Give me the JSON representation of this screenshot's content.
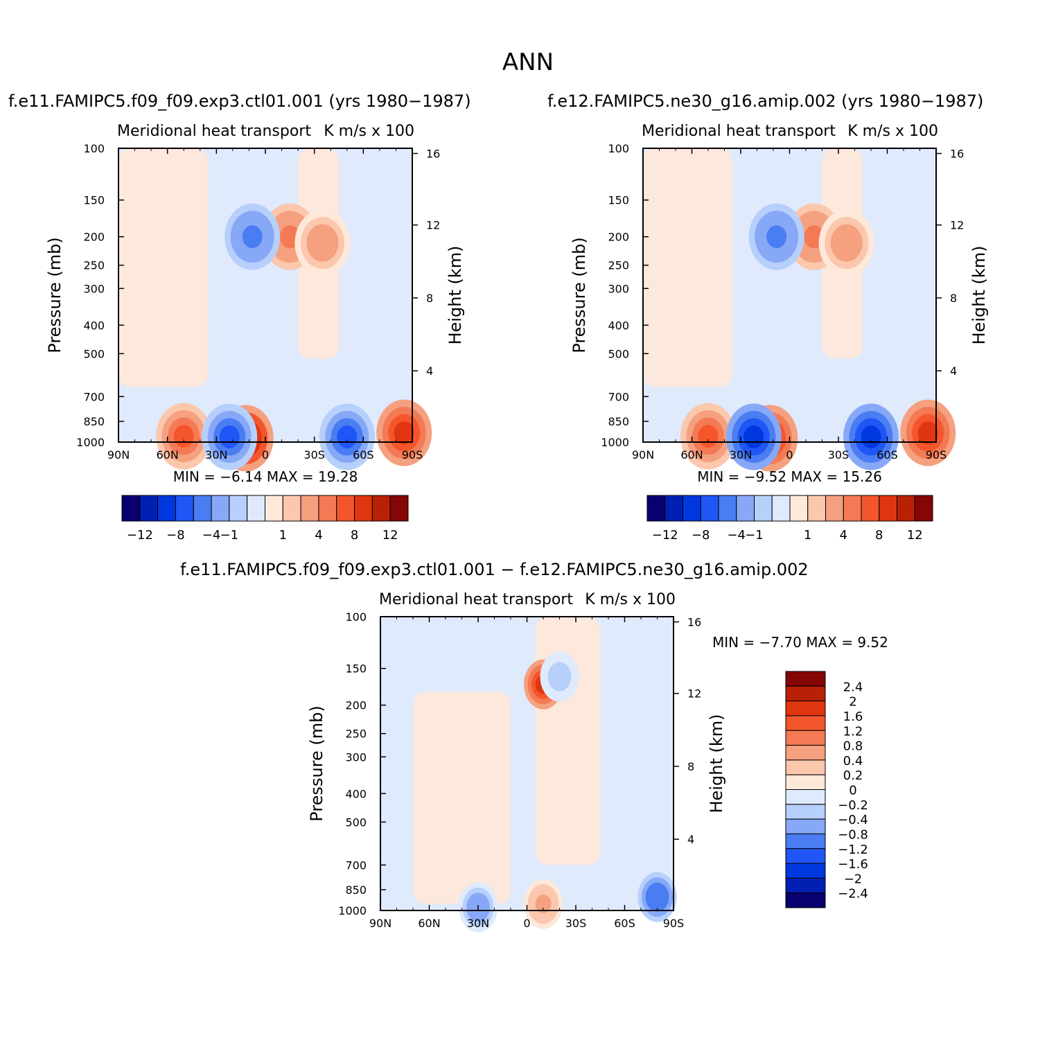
{
  "page_title": "ANN",
  "colors": {
    "cmap": [
      "#08006e",
      "#0020b4",
      "#0038e0",
      "#1f56f5",
      "#4a7df2",
      "#86a8f7",
      "#b7cffb",
      "#dfeafc",
      "#fde8da",
      "#fbc7ad",
      "#f5a07f",
      "#f37a55",
      "#f4562c",
      "#e0360f",
      "#b82106",
      "#860505"
    ]
  },
  "chart_data": [
    {
      "type": "heatmap",
      "panel_title": "f.e11.FAMIPC5.f09_f09.exp3.ctl01.001 (yrs 1980−1987)",
      "left_label": "Meridional heat transport",
      "right_label": "K m/s x 100",
      "ylabel": "Pressure (mb)",
      "ylabel_right": "Height (km)",
      "x_ticks": [
        "90N",
        "60N",
        "30N",
        "0",
        "30S",
        "60S",
        "90S"
      ],
      "y_ticks": [
        "100",
        "150",
        "200",
        "250",
        "300",
        "400",
        "500",
        "700",
        "850",
        "1000"
      ],
      "y_tick_values": [
        100,
        150,
        200,
        250,
        300,
        400,
        500,
        700,
        850,
        1000
      ],
      "y_right_ticks": [
        "16",
        "12",
        "8",
        "4"
      ],
      "xlim": [
        90,
        -90
      ],
      "ylim": [
        1000,
        100
      ],
      "min_max_text": "MIN =   −6.14   MAX =   19.28",
      "min": -6.14,
      "max": 19.28,
      "colorbar_levels": [
        "−12",
        "−8",
        "−4",
        "−1",
        "1",
        "4",
        "8",
        "12"
      ],
      "features": [
        {
          "lat": 12,
          "p": 970,
          "value": 12
        },
        {
          "lat": -50,
          "p": 960,
          "value": -7
        },
        {
          "lat": 50,
          "p": 955,
          "value": 6
        },
        {
          "lat": 22,
          "p": 960,
          "value": -8
        },
        {
          "lat": -15,
          "p": 200,
          "value": 5
        },
        {
          "lat": 8,
          "p": 200,
          "value": -5
        },
        {
          "lat": -35,
          "p": 210,
          "value": 3
        },
        {
          "lat": -85,
          "p": 930,
          "value": 9
        }
      ]
    },
    {
      "type": "heatmap",
      "panel_title": "f.e12.FAMIPC5.ne30_g16.amip.002 (yrs 1980−1987)",
      "left_label": "Meridional heat transport",
      "right_label": "K m/s x 100",
      "ylabel": "Pressure (mb)",
      "ylabel_right": "Height (km)",
      "x_ticks": [
        "90N",
        "60N",
        "30N",
        "0",
        "30S",
        "60S",
        "90S"
      ],
      "y_ticks": [
        "100",
        "150",
        "200",
        "250",
        "300",
        "400",
        "500",
        "700",
        "850",
        "1000"
      ],
      "y_tick_values": [
        100,
        150,
        200,
        250,
        300,
        400,
        500,
        700,
        850,
        1000
      ],
      "y_right_ticks": [
        "16",
        "12",
        "8",
        "4"
      ],
      "xlim": [
        90,
        -90
      ],
      "ylim": [
        1000,
        100
      ],
      "min_max_text": "MIN =   −9.52   MAX =   15.26",
      "min": -9.52,
      "max": 15.26,
      "colorbar_levels": [
        "−12",
        "−8",
        "−4",
        "−1",
        "1",
        "4",
        "8",
        "12"
      ],
      "features": [
        {
          "lat": 12,
          "p": 970,
          "value": 10
        },
        {
          "lat": -50,
          "p": 960,
          "value": -9
        },
        {
          "lat": 50,
          "p": 955,
          "value": 6
        },
        {
          "lat": 22,
          "p": 960,
          "value": -9
        },
        {
          "lat": -15,
          "p": 200,
          "value": 5
        },
        {
          "lat": 8,
          "p": 200,
          "value": -5
        },
        {
          "lat": -35,
          "p": 210,
          "value": 3
        },
        {
          "lat": -85,
          "p": 930,
          "value": 8
        }
      ]
    },
    {
      "type": "heatmap",
      "panel_title": "f.e11.FAMIPC5.f09_f09.exp3.ctl01.001 − f.e12.FAMIPC5.ne30_g16.amip.002",
      "left_label": "Meridional heat transport",
      "right_label": "K m/s x 100",
      "ylabel": "Pressure (mb)",
      "ylabel_right": "Height (km)",
      "x_ticks": [
        "90N",
        "60N",
        "30N",
        "0",
        "30S",
        "60S",
        "90S"
      ],
      "y_ticks": [
        "100",
        "150",
        "200",
        "250",
        "300",
        "400",
        "500",
        "700",
        "850",
        "1000"
      ],
      "y_tick_values": [
        100,
        150,
        200,
        250,
        300,
        400,
        500,
        700,
        850,
        1000
      ],
      "y_right_ticks": [
        "16",
        "12",
        "8",
        "4"
      ],
      "xlim": [
        90,
        -90
      ],
      "ylim": [
        1000,
        100
      ],
      "min_max_text": "MIN =   −7.70   MAX =     9.52",
      "min": -7.7,
      "max": 9.52,
      "colorbar_levels": [
        "2.4",
        "2",
        "1.6",
        "1.2",
        "0.8",
        "0.4",
        "0.2",
        "0",
        "−0.2",
        "−0.4",
        "−0.8",
        "−1.2",
        "−1.6",
        "−2",
        "−2.4"
      ],
      "features": [
        {
          "lat": -10,
          "p": 170,
          "value": 1.6
        },
        {
          "lat": -20,
          "p": 160,
          "value": -0.4
        },
        {
          "lat": 30,
          "p": 975,
          "value": -0.8
        },
        {
          "lat": -10,
          "p": 950,
          "value": 0.4
        },
        {
          "lat": -80,
          "p": 900,
          "value": -1.2
        }
      ]
    }
  ]
}
